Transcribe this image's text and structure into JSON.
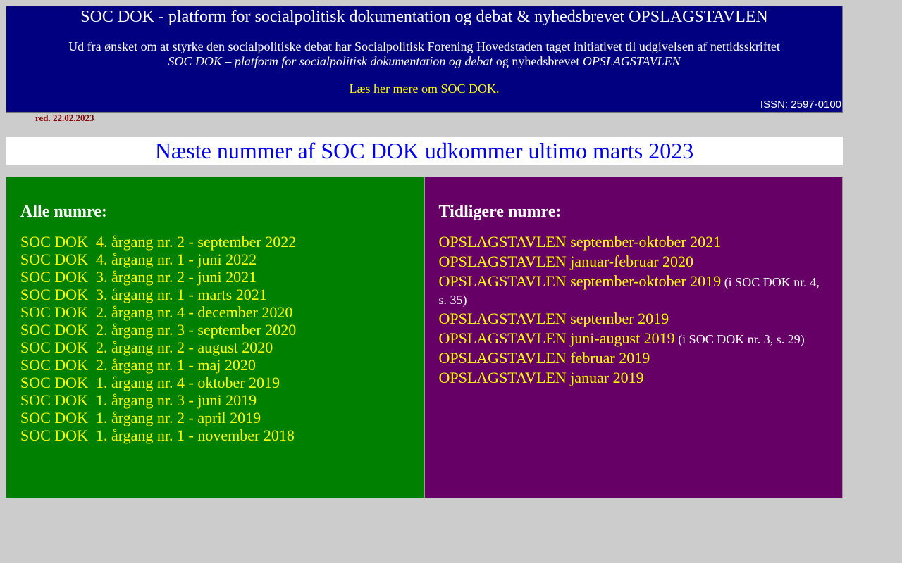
{
  "header": {
    "title": "SOC DOK - platform for socialpolitisk dokumentation og debat & nyhedsbrevet OPSLAGSTAVLEN",
    "intro_line1": "Ud fra ønsket om at styrke den socialpolitiske debat har Socialpolitisk Forening Hovedstaden taget initiativet til udgivelsen af nettidsskriftet",
    "intro_italic1": "SOC DOK – platform for socialpolitisk dokumentation og debat",
    "intro_mid": " og nyhedsbrevet ",
    "intro_italic2": "OPSLAGSTAVLEN",
    "more_link": "Læs her mere om SOC DOK.",
    "issn": "ISSN: 2597-0100"
  },
  "edited": "red. 22.02.2023",
  "banner": "Næste nummer af SOC DOK udkommer ultimo marts 2023",
  "colors": {
    "header_bg": "#000080",
    "left_bg": "#008000",
    "right_bg": "#660066",
    "link": "#ffff00",
    "banner_text": "#0000ee"
  },
  "left": {
    "heading": "Alle numre:",
    "items": [
      "SOC DOK  4. årgang nr. 2 - september 2022",
      "SOC DOK  4. årgang nr. 1 - juni 2022",
      "SOC DOK  3. årgang nr. 2 - juni 2021",
      "SOC DOK  3. årgang nr. 1 - marts 2021",
      "SOC DOK  2. årgang nr. 4 - december 2020",
      "SOC DOK  2. årgang nr. 3 - september 2020",
      "SOC DOK  2. årgang nr. 2 - august 2020",
      "SOC DOK  2. årgang nr. 1 - maj 2020",
      "SOC DOK  1. årgang nr. 4 - oktober 2019",
      "SOC DOK  1. årgang nr. 3 - juni 2019",
      "SOC DOK  1. årgang nr. 2 - april 2019",
      "SOC DOK  1. årgang nr. 1 - november 2018"
    ]
  },
  "right": {
    "heading": "Tidligere numre:",
    "items": [
      {
        "label": "OPSLAGSTAVLEN september-oktober 2021",
        "note": ""
      },
      {
        "label": "OPSLAGSTAVLEN januar-februar 2020",
        "note": ""
      },
      {
        "label": "OPSLAGSTAVLEN september-oktober 2019",
        "note": " (i SOC DOK nr. 4, s. 35)"
      },
      {
        "label": "OPSLAGSTAVLEN september 2019",
        "note": ""
      },
      {
        "label": "OPSLAGSTAVLEN juni-august 2019",
        "note": "  (i SOC DOK nr. 3, s. 29)"
      },
      {
        "label": "OPSLAGSTAVLEN februar 2019",
        "note": ""
      },
      {
        "label": "OPSLAGSTAVLEN januar 2019",
        "note": ""
      }
    ]
  }
}
